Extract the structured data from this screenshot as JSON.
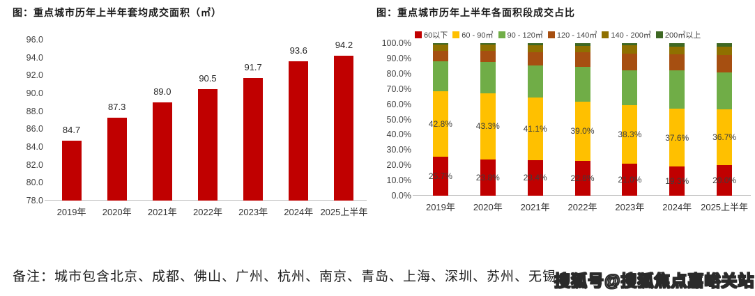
{
  "page": {
    "note": "备注：城市包含北京、成都、佛山、广州、杭州、南京、青岛、上海、深圳、苏州、无锡",
    "watermark": "搜狐号@搜狐焦点嘉峪关站"
  },
  "chart_data": [
    {
      "type": "bar",
      "title": "图：重点城市历年上半年套均成交面积（㎡）",
      "categories": [
        "2019年",
        "2020年",
        "2021年",
        "2022年",
        "2023年",
        "2024年",
        "2025上半年"
      ],
      "values": [
        84.7,
        87.3,
        89.0,
        90.5,
        91.7,
        93.6,
        94.2
      ],
      "value_labels": [
        "84.7",
        "87.3",
        "89.0",
        "90.5",
        "91.7",
        "93.6",
        "94.2"
      ],
      "ylabel": "",
      "xlabel": "",
      "ylim": [
        78.0,
        96.0
      ],
      "ytick_labels": [
        "96.0",
        "94.0",
        "92.0",
        "90.0",
        "88.0",
        "86.0",
        "84.0",
        "82.0",
        "80.0",
        "78.0"
      ],
      "grid": false,
      "legend": false,
      "bar_color": "#c00000"
    },
    {
      "type": "bar",
      "stacked": true,
      "title": "图：重点城市历年上半年各面积段成交占比",
      "categories": [
        "2019年",
        "2020年",
        "2021年",
        "2022年",
        "2023年",
        "2024年",
        "2025上半年"
      ],
      "series": [
        {
          "name": "60以下",
          "color": "#c00000",
          "values": [
            25.7,
            23.8,
            23.4,
            22.8,
            21.0,
            19.3,
            20.0
          ],
          "labels": [
            "25.7%",
            "23.8%",
            "23.4%",
            "22.8%",
            "21.0%",
            "19.3%",
            "20.0%"
          ]
        },
        {
          "name": "60 - 90㎡",
          "color": "#ffc000",
          "values": [
            42.8,
            43.3,
            41.1,
            39.0,
            38.3,
            37.6,
            36.7
          ],
          "labels": [
            "42.8%",
            "43.3%",
            "41.1%",
            "39.0%",
            "38.3%",
            "37.6%",
            "36.7%"
          ]
        },
        {
          "name": "90 - 120㎡",
          "color": "#70ad47",
          "values": [
            19.6,
            20.6,
            21.0,
            22.9,
            23.1,
            25.1,
            24.2
          ]
        },
        {
          "name": "120 - 140㎡",
          "color": "#a64f11",
          "values": [
            6.9,
            7.2,
            8.7,
            9.2,
            10.7,
            10.7,
            11.4
          ]
        },
        {
          "name": "140 - 200㎡",
          "color": "#8f7000",
          "values": [
            4.2,
            4.3,
            4.6,
            4.3,
            5.4,
            5.0,
            5.4
          ]
        },
        {
          "name": "200㎡以上",
          "color": "#3e6823",
          "values": [
            0.8,
            0.8,
            1.2,
            1.8,
            1.5,
            2.3,
            2.3
          ]
        }
      ],
      "ylabel": "",
      "xlabel": "",
      "ylim": [
        0,
        100
      ],
      "ytick_labels": [
        "100.0%",
        "90.0%",
        "80.0%",
        "70.0%",
        "60.0%",
        "50.0%",
        "40.0%",
        "30.0%",
        "20.0%",
        "10.0%",
        "0.0%"
      ],
      "grid": false,
      "legend_position": "top"
    }
  ]
}
